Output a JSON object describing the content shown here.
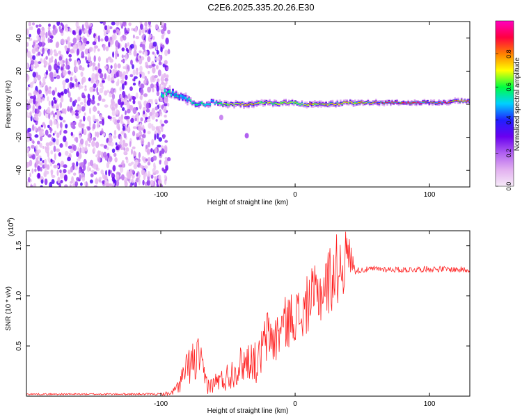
{
  "title": "C2E6.2025.335.20.26.E30",
  "colors": {
    "snr_line": "#ff2020",
    "axis": "#000000",
    "colormap": [
      "#f6eaf8",
      "#e2b0f0",
      "#b060f0",
      "#6a00f0",
      "#2020ff",
      "#00d0ff",
      "#00ff40",
      "#ffff00",
      "#ff8000",
      "#ff0040",
      "#ff00c0"
    ]
  },
  "chart_data": [
    {
      "type": "heatmap",
      "name": "spectrogram",
      "xlabel": "Height of straight line (km)",
      "ylabel": "Frequency (Hz)",
      "xlim": [
        -200,
        130
      ],
      "ylim": [
        -50,
        50
      ],
      "xticks": [
        -100,
        0,
        100
      ],
      "yticks": [
        -40,
        -20,
        0,
        20,
        40
      ],
      "noise_region_x": [
        -200,
        -97
      ],
      "signal_track": {
        "x": [
          -100,
          -95,
          -90,
          -85,
          -80,
          -75,
          -70,
          -65,
          -60,
          -55,
          -50,
          -45,
          -40,
          -35,
          -30,
          -25,
          -20,
          -15,
          -10,
          -5,
          0,
          5,
          10,
          15,
          20,
          25,
          30,
          35,
          40,
          50,
          60,
          70,
          80,
          90,
          100,
          110,
          120,
          130
        ],
        "y": [
          6,
          8,
          5,
          4,
          3,
          1,
          0,
          1,
          1,
          0,
          0,
          0,
          0,
          0,
          0,
          1,
          1,
          0,
          1,
          1,
          1,
          0,
          0,
          0,
          0,
          0,
          0,
          1,
          1,
          1,
          1,
          1,
          1,
          1,
          1,
          1,
          2,
          2
        ],
        "peak": [
          0.55,
          0.6,
          0.5,
          0.5,
          0.55,
          0.6,
          0.6,
          0.5,
          0.55,
          0.7,
          0.75,
          0.75,
          0.8,
          0.85,
          0.8,
          0.7,
          0.75,
          0.7,
          0.8,
          0.75,
          0.8,
          0.75,
          0.8,
          0.85,
          0.8,
          0.85,
          0.8,
          0.75,
          0.8,
          0.8,
          0.9,
          0.95,
          0.95,
          0.95,
          0.95,
          0.95,
          0.9,
          0.85
        ]
      },
      "isolated_blobs": [
        {
          "x": -36,
          "y": -19,
          "value": 0.2
        },
        {
          "x": -55,
          "y": -8,
          "value": 0.15
        }
      ],
      "colorbar": {
        "label": "Normalized spectral amplitude",
        "range": [
          0,
          1
        ],
        "ticks": [
          "0.0",
          "0.2",
          "0.4",
          "0.6",
          "0.8"
        ]
      }
    },
    {
      "type": "line",
      "name": "snr",
      "xlabel": "Height of straight line (km)",
      "ylabel": "SNR (10 * v/v)",
      "scale_label": "(x10",
      "scale_exponent": "4",
      "xlim": [
        -200,
        130
      ],
      "ylim": [
        0,
        1.65
      ],
      "xticks": [
        -100,
        0,
        100
      ],
      "yticks": [
        "0.5",
        "1.0",
        "1.5"
      ],
      "series": [
        {
          "name": "SNR",
          "x": [
            -200,
            -150,
            -100,
            -92,
            -88,
            -85,
            -80,
            -77,
            -75,
            -72,
            -70,
            -68,
            -65,
            -62,
            -60,
            -57,
            -55,
            -50,
            -45,
            -40,
            -36,
            -32,
            -28,
            -25,
            -22,
            -20,
            -15,
            -10,
            -5,
            0,
            5,
            10,
            15,
            20,
            25,
            30,
            35,
            38,
            40,
            45,
            50,
            60,
            80,
            100,
            130
          ],
          "y": [
            0.02,
            0.02,
            0.02,
            0.03,
            0.08,
            0.15,
            0.28,
            0.35,
            0.3,
            0.42,
            0.32,
            0.2,
            0.12,
            0.1,
            0.14,
            0.16,
            0.15,
            0.2,
            0.26,
            0.32,
            0.35,
            0.38,
            0.3,
            0.45,
            0.55,
            0.62,
            0.55,
            0.7,
            0.75,
            0.82,
            0.78,
            0.95,
            1.0,
            1.05,
            1.15,
            1.25,
            1.32,
            1.4,
            1.42,
            1.25,
            1.26,
            1.27,
            1.26,
            1.27,
            1.26
          ],
          "noise": [
            0.008,
            0.008,
            0.01,
            0.03,
            0.06,
            0.12,
            0.18,
            0.22,
            0.22,
            0.2,
            0.17,
            0.13,
            0.1,
            0.08,
            0.09,
            0.11,
            0.12,
            0.15,
            0.17,
            0.19,
            0.2,
            0.21,
            0.2,
            0.25,
            0.27,
            0.28,
            0.26,
            0.27,
            0.27,
            0.28,
            0.27,
            0.3,
            0.31,
            0.33,
            0.35,
            0.37,
            0.36,
            0.32,
            0.2,
            0.03,
            0.03,
            0.03,
            0.03,
            0.03,
            0.03
          ]
        }
      ]
    }
  ]
}
